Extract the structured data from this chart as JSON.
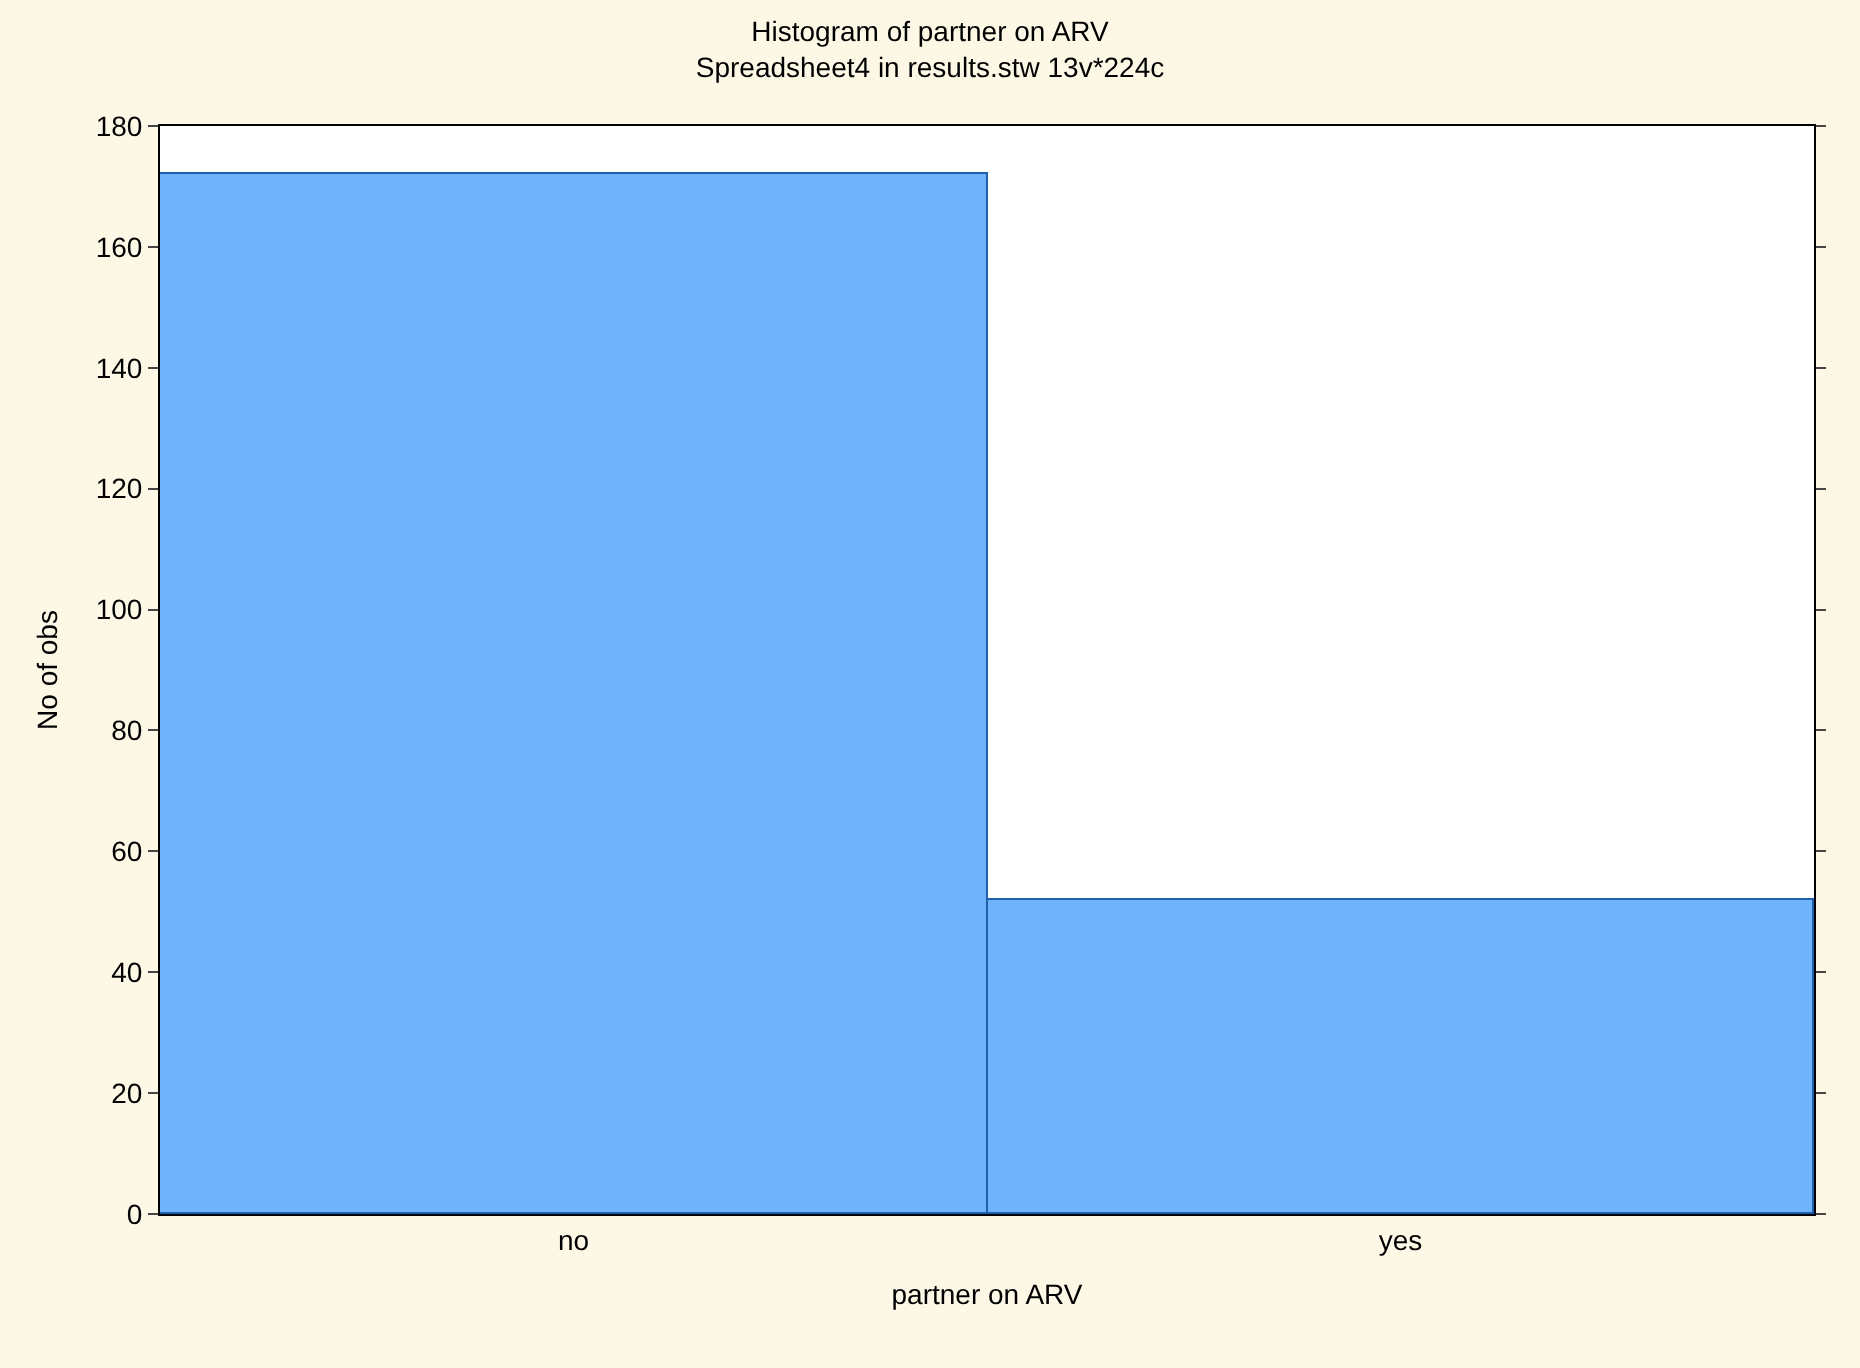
{
  "chart_data": {
    "type": "bar",
    "title": "Histogram of partner on ARV",
    "subtitle": "Spreadsheet4 in results.stw 13v*224c",
    "xlabel": "partner on ARV",
    "ylabel": "No of obs",
    "categories": [
      "no",
      "yes"
    ],
    "values": [
      172,
      52
    ],
    "color": "#6fb3fb",
    "ylim": [
      0,
      180
    ],
    "yticks": [
      0,
      20,
      40,
      60,
      80,
      100,
      120,
      140,
      160,
      180
    ]
  }
}
